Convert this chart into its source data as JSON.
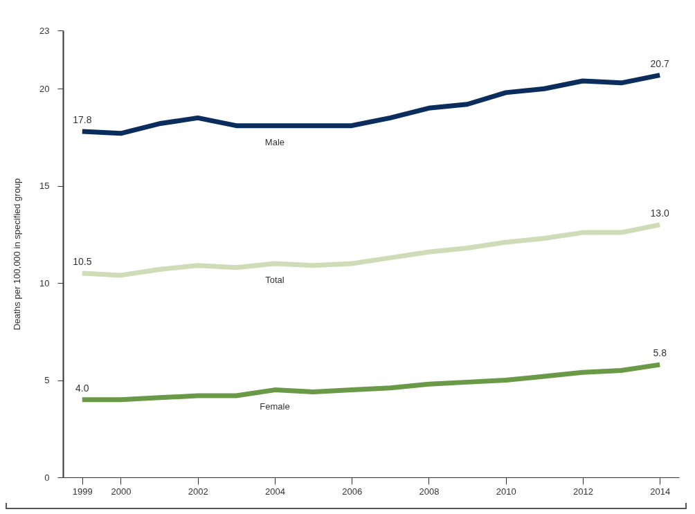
{
  "chart_data": {
    "type": "line",
    "ylabel": "Deaths per 100,000 in specified group",
    "x": [
      1999,
      2000,
      2001,
      2002,
      2003,
      2004,
      2005,
      2006,
      2007,
      2008,
      2009,
      2010,
      2011,
      2012,
      2013,
      2014
    ],
    "xlim": [
      1998.5,
      2014.5
    ],
    "xticks": [
      1999,
      2000,
      2002,
      2004,
      2006,
      2008,
      2010,
      2012,
      2014
    ],
    "ylim": [
      0,
      23
    ],
    "yticks": [
      0,
      5,
      10,
      15,
      20,
      23
    ],
    "grid": false,
    "legend": false,
    "marker": "none",
    "line_style": "solid",
    "series": [
      {
        "name": "Male",
        "color": "#0b2d5e",
        "values": [
          17.8,
          17.7,
          18.2,
          18.5,
          18.1,
          18.1,
          18.1,
          18.1,
          18.5,
          19.0,
          19.2,
          19.8,
          20.0,
          20.4,
          20.3,
          20.7
        ],
        "value_labels": [
          "17.8",
          null,
          null,
          null,
          null,
          null,
          null,
          null,
          null,
          null,
          null,
          null,
          null,
          null,
          null,
          "20.7"
        ]
      },
      {
        "name": "Total",
        "color": "#cfdcb8",
        "values": [
          10.5,
          10.4,
          10.7,
          10.9,
          10.8,
          11.0,
          10.9,
          11.0,
          11.3,
          11.6,
          11.8,
          12.1,
          12.3,
          12.6,
          12.6,
          13.0
        ],
        "value_labels": [
          "10.5",
          null,
          null,
          null,
          null,
          null,
          null,
          null,
          null,
          null,
          null,
          null,
          null,
          null,
          null,
          "13.0"
        ]
      },
      {
        "name": "Female",
        "color": "#6a9a48",
        "values": [
          4.0,
          4.0,
          4.1,
          4.2,
          4.2,
          4.5,
          4.4,
          4.5,
          4.6,
          4.8,
          4.9,
          5.0,
          5.2,
          5.4,
          5.5,
          5.8
        ],
        "value_labels": [
          "4.0",
          null,
          null,
          null,
          null,
          null,
          null,
          null,
          null,
          null,
          null,
          null,
          null,
          null,
          null,
          "5.8"
        ]
      }
    ]
  }
}
